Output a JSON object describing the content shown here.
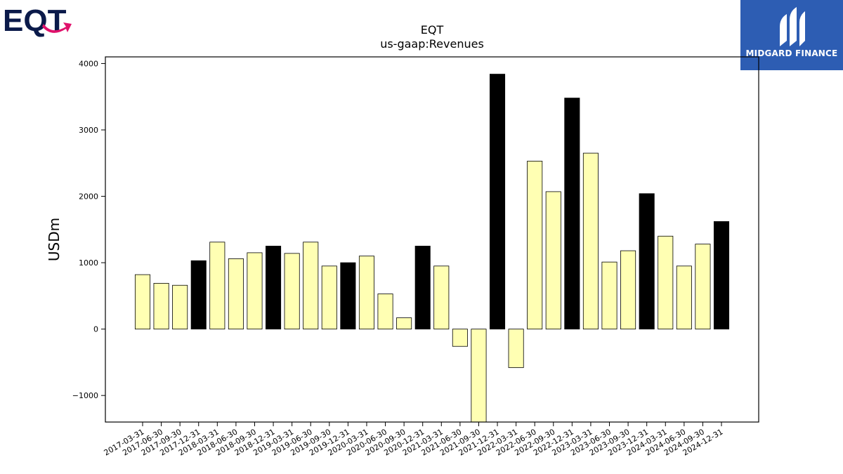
{
  "branding": {
    "left_logo_text": "EQT",
    "right_logo_text": "MIDGARD FINANCE",
    "left_logo_colors": {
      "text": "#0b1a4a",
      "arrow": "#e0116b"
    },
    "right_logo_color": "#2d5db3"
  },
  "chart_data": {
    "type": "bar",
    "title": "EQT",
    "subtitle": "us-gaap:Revenues",
    "ylabel": "USDm",
    "xlabel": "",
    "ylim": [
      -1400,
      4100
    ],
    "yticks": [
      -1000,
      0,
      1000,
      2000,
      3000,
      4000
    ],
    "ytick_labels": [
      "−1000",
      "0",
      "1000",
      "2000",
      "3000",
      "4000"
    ],
    "grid": false,
    "colors": {
      "quarterly": "#ffffb3",
      "annual": "#000000",
      "edge": "#000000"
    },
    "categories": [
      "2017-03-31",
      "2017-06-30",
      "2017-09-30",
      "2017-12-31",
      "2018-03-31",
      "2018-06-30",
      "2018-09-30",
      "2018-12-31",
      "2019-03-31",
      "2019-06-30",
      "2019-09-30",
      "2019-12-31",
      "2020-03-31",
      "2020-06-30",
      "2020-09-30",
      "2020-12-31",
      "2021-03-31",
      "2021-06-30",
      "2021-09-30",
      "2021-12-31",
      "2022-03-31",
      "2022-06-30",
      "2022-09-30",
      "2022-12-31",
      "2023-03-31",
      "2023-06-30",
      "2023-09-30",
      "2023-12-31",
      "2024-03-31",
      "2024-06-30",
      "2024-09-30",
      "2024-12-31"
    ],
    "values": [
      820,
      690,
      660,
      1030,
      1310,
      1060,
      1150,
      1250,
      1140,
      1310,
      950,
      1000,
      1100,
      530,
      170,
      1250,
      950,
      -260,
      -1450,
      3840,
      -580,
      2530,
      2070,
      3480,
      2650,
      1010,
      1180,
      2040,
      1400,
      950,
      1280,
      1620
    ],
    "annual_flags": [
      false,
      false,
      false,
      true,
      false,
      false,
      false,
      true,
      false,
      false,
      false,
      true,
      false,
      false,
      false,
      true,
      false,
      false,
      false,
      true,
      false,
      false,
      false,
      true,
      false,
      false,
      false,
      true,
      false,
      false,
      false,
      true
    ]
  }
}
